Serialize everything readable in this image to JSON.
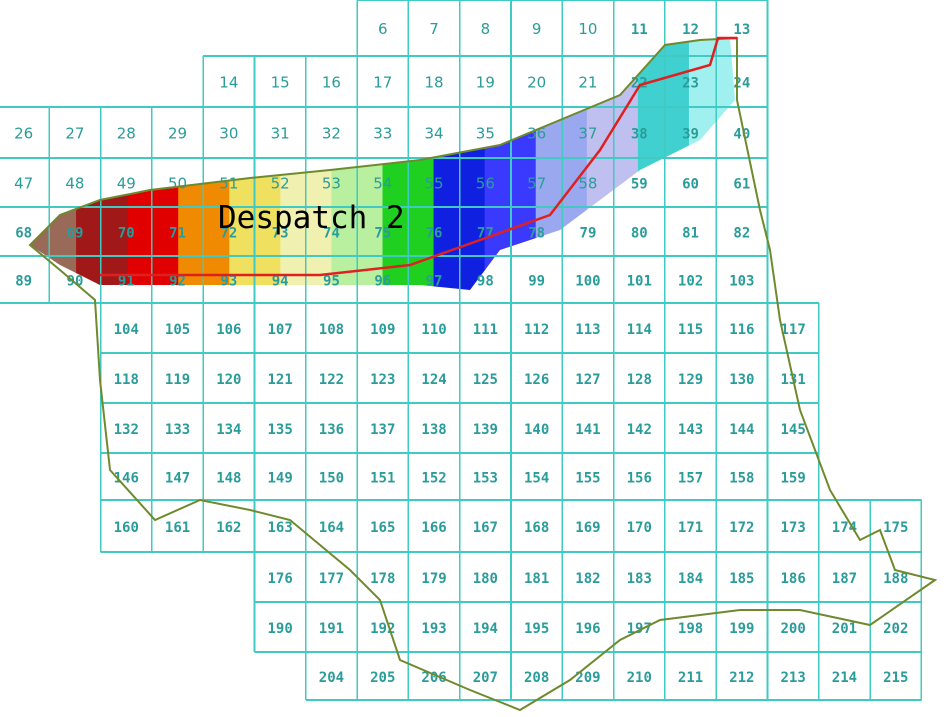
{
  "map": {
    "title": "Despatch 2",
    "colors": {
      "grid": "#41c9c3",
      "grid_text": "#2a9c9a",
      "boundary": "#6f8a2d",
      "route": "#e02020",
      "background": "#ffffff"
    },
    "gradient_colors": [
      "#9a6a58",
      "#a01818",
      "#e00000",
      "#f08a00",
      "#f0e060",
      "#f0f0b0",
      "#b8f0a0",
      "#20d020",
      "#1020e0",
      "#3a3aff",
      "#9aa8f0",
      "#c0c0f0",
      "#40d0d0",
      "#a0f0f0"
    ],
    "cells": [
      [
        "6",
        "7",
        "8",
        "9",
        "10",
        "11",
        "12",
        "13"
      ],
      [
        "14",
        "15",
        "16",
        "17",
        "18",
        "19",
        "20",
        "21",
        "22",
        "23",
        "24"
      ],
      [
        "26",
        "27",
        "28",
        "29",
        "30",
        "31",
        "32",
        "33",
        "34",
        "35",
        "36",
        "37",
        "38",
        "39",
        "40"
      ],
      [
        "47",
        "48",
        "49",
        "50",
        "51",
        "52",
        "53",
        "54",
        "55",
        "56",
        "57",
        "58",
        "59",
        "60",
        "61"
      ],
      [
        "68",
        "69",
        "70",
        "71",
        "72",
        "73",
        "74",
        "75",
        "76",
        "77",
        "78",
        "79",
        "80",
        "81",
        "82"
      ],
      [
        "89",
        "90",
        "91",
        "92",
        "93",
        "94",
        "95",
        "96",
        "97",
        "98",
        "99",
        "100",
        "101",
        "102",
        "103"
      ],
      [
        "104",
        "105",
        "106",
        "107",
        "108",
        "109",
        "110",
        "111",
        "112",
        "113",
        "114",
        "115",
        "116",
        "117"
      ],
      [
        "118",
        "119",
        "120",
        "121",
        "122",
        "123",
        "124",
        "125",
        "126",
        "127",
        "128",
        "129",
        "130",
        "131"
      ],
      [
        "132",
        "133",
        "134",
        "135",
        "136",
        "137",
        "138",
        "139",
        "140",
        "141",
        "142",
        "143",
        "144",
        "145"
      ],
      [
        "146",
        "147",
        "148",
        "149",
        "150",
        "151",
        "152",
        "153",
        "154",
        "155",
        "156",
        "157",
        "158",
        "159"
      ],
      [
        "160",
        "161",
        "162",
        "163",
        "164",
        "165",
        "166",
        "167",
        "168",
        "169",
        "170",
        "171",
        "172",
        "173",
        "174",
        "175"
      ],
      [
        "176",
        "177",
        "178",
        "179",
        "180",
        "181",
        "182",
        "183",
        "184",
        "185",
        "186",
        "187",
        "188"
      ],
      [
        "190",
        "191",
        "192",
        "193",
        "194",
        "195",
        "196",
        "197",
        "198",
        "199",
        "200",
        "201",
        "202"
      ],
      [
        "204",
        "205",
        "206",
        "207",
        "208",
        "209",
        "210",
        "211",
        "212",
        "213",
        "214",
        "215"
      ]
    ]
  }
}
